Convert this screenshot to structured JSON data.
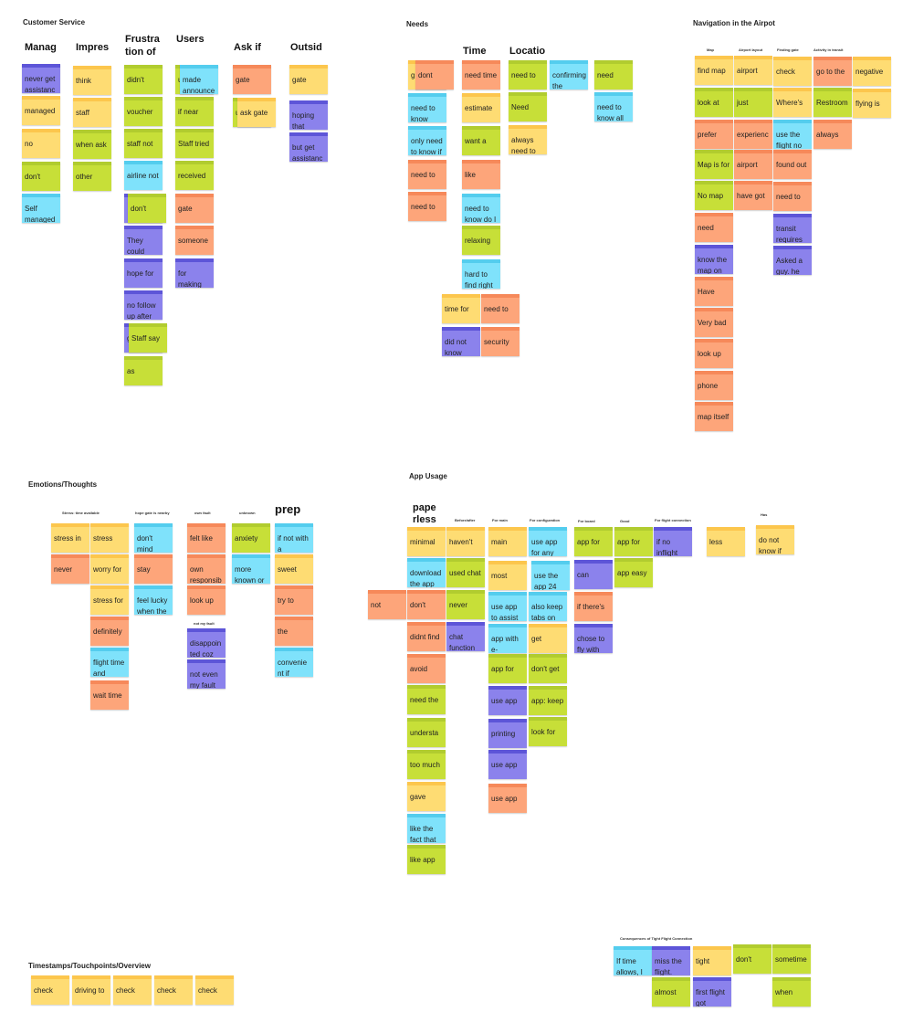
{
  "colors": {
    "yellow": "#fedc73",
    "green": "#c7df38",
    "orange": "#fda57a",
    "blue": "#7fe2fb",
    "purple": "#8b82ec"
  },
  "sections": {
    "customer_service": "Customer Service",
    "needs": "Needs",
    "navigation": "Navigation in the Airpot",
    "emotions": "Emotions/Thoughts",
    "app_usage": "App Usage",
    "timestamps": "Timestamps/Touchpoints/Overview",
    "consequences": "Consequences of Tight Flight Connection"
  },
  "headers": {
    "cs_manag": "Manag",
    "cs_impres": "Impres",
    "cs_frustra_1": "Frustra",
    "cs_frustra_2": "tion of",
    "cs_users": "Users",
    "cs_askif": "Ask if",
    "cs_outsid": "Outsid",
    "needs_time": "Time",
    "needs_locatio": "Locatio",
    "nav_map": "Map",
    "nav_layout": "Airport layout",
    "nav_finding": "Finding gate",
    "nav_activity": "Activity in transit",
    "emo_stress": "Stress: time available",
    "emo_hope": "hope gate is nearby",
    "emo_ownfault": "own fault",
    "emo_unknown": "unknown",
    "emo_prep": "prep",
    "emo_notmyfault": "not my fault",
    "app_paperless_1": "pape",
    "app_paperless_2": "rless",
    "app_hav": "Before/after",
    "app_main": "For main",
    "app_config": "For configuration",
    "app_forboard": "For board",
    "app_good": "Good",
    "app_inflight": "For flight connection",
    "app_has": "Has"
  },
  "notes": [
    {
      "id": "cs1",
      "color": "purple",
      "text": "never get assistanc"
    },
    {
      "id": "cs2",
      "color": "yellow",
      "text": "managed"
    },
    {
      "id": "cs3",
      "color": "yellow",
      "text": "no"
    },
    {
      "id": "cs4",
      "color": "green",
      "text": "don't"
    },
    {
      "id": "cs5",
      "color": "blue",
      "text": "Self managed"
    },
    {
      "id": "cs6",
      "color": "yellow",
      "text": "think"
    },
    {
      "id": "cs7",
      "color": "yellow",
      "text": "staff"
    },
    {
      "id": "cs8",
      "color": "green",
      "text": "when ask"
    },
    {
      "id": "cs9",
      "color": "green",
      "text": "other"
    },
    {
      "id": "cs10",
      "color": "green",
      "text": "didn't"
    },
    {
      "id": "cs11",
      "color": "green",
      "text": "voucher"
    },
    {
      "id": "cs12",
      "color": "green",
      "text": "staff not"
    },
    {
      "id": "cs13",
      "color": "blue",
      "text": "airline not"
    },
    {
      "id": "cs14",
      "color": "purple",
      "text": ""
    },
    {
      "id": "cs15",
      "color": "green",
      "text": "don't"
    },
    {
      "id": "cs16",
      "color": "purple",
      "text": "They could"
    },
    {
      "id": "cs17",
      "color": "purple",
      "text": "hope for"
    },
    {
      "id": "cs18",
      "color": "purple",
      "text": "no follow up after"
    },
    {
      "id": "cs19",
      "color": "purple",
      "text": "g a"
    },
    {
      "id": "cs20",
      "color": "green",
      "text": "Staff say"
    },
    {
      "id": "cs21",
      "color": "green",
      "text": "as"
    },
    {
      "id": "cs22",
      "color": "green",
      "text": "u"
    },
    {
      "id": "cs23",
      "color": "blue",
      "text": "made announce"
    },
    {
      "id": "cs24",
      "color": "green",
      "text": "if near"
    },
    {
      "id": "cs25",
      "color": "green",
      "text": "Staff tried"
    },
    {
      "id": "cs26",
      "color": "green",
      "text": "received"
    },
    {
      "id": "cs27",
      "color": "orange",
      "text": "gate"
    },
    {
      "id": "cs28",
      "color": "orange",
      "text": "someone"
    },
    {
      "id": "cs29",
      "color": "purple",
      "text": "for making"
    },
    {
      "id": "cs30",
      "color": "orange",
      "text": "gate"
    },
    {
      "id": "cs31",
      "color": "green",
      "text": "u"
    },
    {
      "id": "cs32",
      "color": "yellow",
      "text": "ask gate"
    },
    {
      "id": "cs33",
      "color": "yellow",
      "text": "gate"
    },
    {
      "id": "cs34",
      "color": "purple",
      "text": "hoping that"
    },
    {
      "id": "cs35",
      "color": "purple",
      "text": "but get assistanc"
    },
    {
      "id": "nd1",
      "color": "yellow",
      "text": "g g"
    },
    {
      "id": "nd2",
      "color": "orange",
      "text": "dont"
    },
    {
      "id": "nd3",
      "color": "blue",
      "text": "need to know"
    },
    {
      "id": "nd4",
      "color": "blue",
      "text": "only need to know if"
    },
    {
      "id": "nd5",
      "color": "orange",
      "text": "need to"
    },
    {
      "id": "nd6",
      "color": "orange",
      "text": "need to"
    },
    {
      "id": "nd7",
      "color": "orange",
      "text": "need time"
    },
    {
      "id": "nd8",
      "color": "yellow",
      "text": "estimate"
    },
    {
      "id": "nd9",
      "color": "green",
      "text": "want a"
    },
    {
      "id": "nd10",
      "color": "orange",
      "text": "like"
    },
    {
      "id": "nd11",
      "color": "blue",
      "text": "need to know do I"
    },
    {
      "id": "nd12",
      "color": "green",
      "text": "relaxing"
    },
    {
      "id": "nd13",
      "color": "blue",
      "text": "hard to find right"
    },
    {
      "id": "nd14",
      "color": "yellow",
      "text": "time for"
    },
    {
      "id": "nd15",
      "color": "orange",
      "text": "need to"
    },
    {
      "id": "nd16",
      "color": "purple",
      "text": "did not know"
    },
    {
      "id": "nd17",
      "color": "orange",
      "text": "security"
    },
    {
      "id": "nd18",
      "color": "green",
      "text": "need to"
    },
    {
      "id": "nd19",
      "color": "green",
      "text": "Need"
    },
    {
      "id": "nd20",
      "color": "yellow",
      "text": "always need to"
    },
    {
      "id": "nd21",
      "color": "blue",
      "text": "confirming the"
    },
    {
      "id": "nd22",
      "color": "green",
      "text": "need"
    },
    {
      "id": "nd23",
      "color": "blue",
      "text": "need to know all"
    },
    {
      "id": "nv1",
      "color": "yellow",
      "text": "find map"
    },
    {
      "id": "nv2",
      "color": "green",
      "text": "look at"
    },
    {
      "id": "nv3",
      "color": "orange",
      "text": "prefer"
    },
    {
      "id": "nv4",
      "color": "green",
      "text": "Map is for"
    },
    {
      "id": "nv5",
      "color": "green",
      "text": "No map"
    },
    {
      "id": "nv6",
      "color": "orange",
      "text": "need"
    },
    {
      "id": "nv7",
      "color": "purple",
      "text": "know the map on"
    },
    {
      "id": "nv8",
      "color": "orange",
      "text": "Have"
    },
    {
      "id": "nv9",
      "color": "orange",
      "text": "Very bad"
    },
    {
      "id": "nv10",
      "color": "orange",
      "text": "look up"
    },
    {
      "id": "nv11",
      "color": "orange",
      "text": "phone"
    },
    {
      "id": "nv12",
      "color": "orange",
      "text": "map itself"
    },
    {
      "id": "nv13",
      "color": "yellow",
      "text": "airport"
    },
    {
      "id": "nv14",
      "color": "green",
      "text": "just"
    },
    {
      "id": "nv15",
      "color": "orange",
      "text": "experienc"
    },
    {
      "id": "nv16",
      "color": "orange",
      "text": "airport"
    },
    {
      "id": "nv17",
      "color": "orange",
      "text": "have got"
    },
    {
      "id": "nv18",
      "color": "yellow",
      "text": "check"
    },
    {
      "id": "nv19",
      "color": "yellow",
      "text": "Where's"
    },
    {
      "id": "nv20",
      "color": "blue",
      "text": "use the flight no"
    },
    {
      "id": "nv21",
      "color": "orange",
      "text": "found out"
    },
    {
      "id": "nv22",
      "color": "orange",
      "text": "need to"
    },
    {
      "id": "nv23",
      "color": "purple",
      "text": "transit requires"
    },
    {
      "id": "nv24",
      "color": "purple",
      "text": "Asked a guy. he"
    },
    {
      "id": "nv25",
      "color": "orange",
      "text": "go to the"
    },
    {
      "id": "nv26",
      "color": "green",
      "text": "Restroom"
    },
    {
      "id": "nv27",
      "color": "orange",
      "text": "always"
    },
    {
      "id": "nv28",
      "color": "yellow",
      "text": "negative"
    },
    {
      "id": "nv29",
      "color": "yellow",
      "text": "flying is"
    },
    {
      "id": "em1",
      "color": "yellow",
      "text": "stress in"
    },
    {
      "id": "em2",
      "color": "orange",
      "text": "never"
    },
    {
      "id": "em3",
      "color": "yellow",
      "text": "stress"
    },
    {
      "id": "em4",
      "color": "yellow",
      "text": "worry for"
    },
    {
      "id": "em5",
      "color": "yellow",
      "text": "stress for"
    },
    {
      "id": "em6",
      "color": "orange",
      "text": "definitely"
    },
    {
      "id": "em7",
      "color": "blue",
      "text": "flight time and"
    },
    {
      "id": "em8",
      "color": "orange",
      "text": "wait time"
    },
    {
      "id": "em9",
      "color": "blue",
      "text": "don't mind"
    },
    {
      "id": "em10",
      "color": "orange",
      "text": "stay"
    },
    {
      "id": "em11",
      "color": "blue",
      "text": "feel lucky when the"
    },
    {
      "id": "em12",
      "color": "orange",
      "text": "felt like"
    },
    {
      "id": "em13",
      "color": "orange",
      "text": "own responsib"
    },
    {
      "id": "em14",
      "color": "orange",
      "text": "look up"
    },
    {
      "id": "em15",
      "color": "purple",
      "text": "disappoin ted coz"
    },
    {
      "id": "em16",
      "color": "purple",
      "text": "not even my fault"
    },
    {
      "id": "em17",
      "color": "green",
      "text": "anxiety"
    },
    {
      "id": "em18",
      "color": "blue",
      "text": "more known or"
    },
    {
      "id": "em19",
      "color": "blue",
      "text": "if not with a"
    },
    {
      "id": "em20",
      "color": "yellow",
      "text": "sweet"
    },
    {
      "id": "em21",
      "color": "orange",
      "text": "try to"
    },
    {
      "id": "em22",
      "color": "orange",
      "text": "the"
    },
    {
      "id": "em23",
      "color": "blue",
      "text": "convenie nt if"
    },
    {
      "id": "ap1",
      "color": "yellow",
      "text": "minimal"
    },
    {
      "id": "ap2",
      "color": "blue",
      "text": "download the app"
    },
    {
      "id": "ap3",
      "color": "orange",
      "text": "not"
    },
    {
      "id": "ap4",
      "color": "orange",
      "text": "don't"
    },
    {
      "id": "ap5",
      "color": "orange",
      "text": "didnt find"
    },
    {
      "id": "ap6",
      "color": "orange",
      "text": "avoid"
    },
    {
      "id": "ap7",
      "color": "green",
      "text": "need the"
    },
    {
      "id": "ap8",
      "color": "green",
      "text": "understa"
    },
    {
      "id": "ap9",
      "color": "green",
      "text": "too much"
    },
    {
      "id": "ap10",
      "color": "yellow",
      "text": "gave"
    },
    {
      "id": "ap11",
      "color": "blue",
      "text": "like the fact that"
    },
    {
      "id": "ap12",
      "color": "green",
      "text": "like app"
    },
    {
      "id": "ap13",
      "color": "yellow",
      "text": "haven't"
    },
    {
      "id": "ap14",
      "color": "green",
      "text": "used chat"
    },
    {
      "id": "ap15",
      "color": "green",
      "text": "never"
    },
    {
      "id": "ap16",
      "color": "purple",
      "text": "chat function"
    },
    {
      "id": "ap17",
      "color": "yellow",
      "text": "main"
    },
    {
      "id": "ap18",
      "color": "yellow",
      "text": "most"
    },
    {
      "id": "ap19",
      "color": "blue",
      "text": "use app to assist"
    },
    {
      "id": "ap20",
      "color": "blue",
      "text": "app with e-"
    },
    {
      "id": "ap21",
      "color": "green",
      "text": "app for"
    },
    {
      "id": "ap22",
      "color": "purple",
      "text": "use app"
    },
    {
      "id": "ap23",
      "color": "purple",
      "text": "printing"
    },
    {
      "id": "ap24",
      "color": "purple",
      "text": "use app"
    },
    {
      "id": "ap25",
      "color": "orange",
      "text": "use app"
    },
    {
      "id": "ap26",
      "color": "blue",
      "text": "use app for any"
    },
    {
      "id": "ap27",
      "color": "blue",
      "text": "use the app 24"
    },
    {
      "id": "ap28",
      "color": "blue",
      "text": "also keep tabs on"
    },
    {
      "id": "ap29",
      "color": "yellow",
      "text": "get"
    },
    {
      "id": "ap30",
      "color": "green",
      "text": "don't get"
    },
    {
      "id": "ap31",
      "color": "green",
      "text": "app: keep"
    },
    {
      "id": "ap32",
      "color": "green",
      "text": "look for"
    },
    {
      "id": "ap33",
      "color": "green",
      "text": "app for"
    },
    {
      "id": "ap34",
      "color": "purple",
      "text": "can"
    },
    {
      "id": "ap35",
      "color": "orange",
      "text": "if there's"
    },
    {
      "id": "ap36",
      "color": "purple",
      "text": "chose to fly with"
    },
    {
      "id": "ap37",
      "color": "green",
      "text": "app for"
    },
    {
      "id": "ap38",
      "color": "green",
      "text": "app easy"
    },
    {
      "id": "ap39",
      "color": "purple",
      "text": "if no inflight"
    },
    {
      "id": "ap40",
      "color": "yellow",
      "text": "less"
    },
    {
      "id": "ap41",
      "color": "yellow",
      "text": "do not know if"
    },
    {
      "id": "ts1",
      "color": "yellow",
      "text": "check"
    },
    {
      "id": "ts2",
      "color": "yellow",
      "text": "driving to"
    },
    {
      "id": "ts3",
      "color": "yellow",
      "text": "check"
    },
    {
      "id": "ts4",
      "color": "yellow",
      "text": "check"
    },
    {
      "id": "ts5",
      "color": "yellow",
      "text": "check"
    },
    {
      "id": "cq1",
      "color": "blue",
      "text": "If time allows, I"
    },
    {
      "id": "cq2",
      "color": "purple",
      "text": "miss the flight."
    },
    {
      "id": "cq3",
      "color": "green",
      "text": "almost"
    },
    {
      "id": "cq4",
      "color": "yellow",
      "text": "tight"
    },
    {
      "id": "cq5",
      "color": "purple",
      "text": "first flight got"
    },
    {
      "id": "cq6",
      "color": "green",
      "text": "don't"
    },
    {
      "id": "cq7",
      "color": "green",
      "text": "sometime"
    },
    {
      "id": "cq8",
      "color": "green",
      "text": "when"
    }
  ]
}
